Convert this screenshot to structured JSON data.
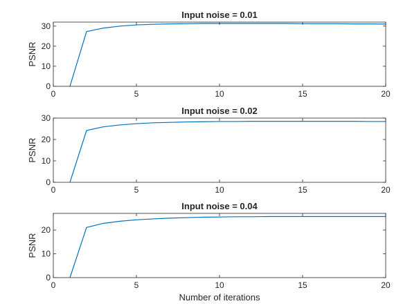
{
  "chart_data": [
    {
      "type": "line",
      "title": "Input noise = 0.01",
      "xlabel": "",
      "ylabel": "PSNR",
      "xlim": [
        0,
        20
      ],
      "ylim": [
        0,
        32
      ],
      "xticks": [
        0,
        5,
        10,
        15,
        20
      ],
      "yticks": [
        0,
        10,
        20,
        30
      ],
      "grid": false,
      "color": "#0072BD",
      "series": [
        {
          "x": [
            1,
            2,
            3,
            4,
            5,
            6,
            7,
            8,
            9,
            10,
            11,
            12,
            13,
            14,
            15,
            16,
            17,
            18,
            19,
            20
          ],
          "values": [
            0,
            27.3,
            29.0,
            30.0,
            30.6,
            30.9,
            31.1,
            31.2,
            31.3,
            31.3,
            31.3,
            31.3,
            31.3,
            31.3,
            31.2,
            31.2,
            31.2,
            31.1,
            31.1,
            31.0
          ]
        }
      ]
    },
    {
      "type": "line",
      "title": "Input noise = 0.02",
      "xlabel": "",
      "ylabel": "PSNR",
      "xlim": [
        0,
        20
      ],
      "ylim": [
        0,
        30
      ],
      "xticks": [
        0,
        5,
        10,
        15,
        20
      ],
      "yticks": [
        0,
        10,
        20,
        30
      ],
      "grid": false,
      "color": "#0072BD",
      "series": [
        {
          "x": [
            1,
            2,
            3,
            4,
            5,
            6,
            7,
            8,
            9,
            10,
            11,
            12,
            13,
            14,
            15,
            16,
            17,
            18,
            19,
            20
          ],
          "values": [
            0,
            24.2,
            25.9,
            26.8,
            27.4,
            27.8,
            28.0,
            28.2,
            28.3,
            28.4,
            28.4,
            28.5,
            28.5,
            28.5,
            28.5,
            28.5,
            28.5,
            28.5,
            28.4,
            28.4
          ]
        }
      ]
    },
    {
      "type": "line",
      "title": "Input noise = 0.04",
      "xlabel": "Number of iterations",
      "ylabel": "PSNR",
      "xlim": [
        0,
        20
      ],
      "ylim": [
        0,
        27
      ],
      "xticks": [
        0,
        5,
        10,
        15,
        20
      ],
      "yticks": [
        0,
        10,
        20
      ],
      "grid": false,
      "color": "#0072BD",
      "series": [
        {
          "x": [
            1,
            2,
            3,
            4,
            5,
            6,
            7,
            8,
            9,
            10,
            11,
            12,
            13,
            14,
            15,
            16,
            17,
            18,
            19,
            20
          ],
          "values": [
            0,
            21.1,
            22.8,
            23.7,
            24.3,
            24.7,
            25.0,
            25.2,
            25.4,
            25.5,
            25.6,
            25.6,
            25.7,
            25.7,
            25.7,
            25.7,
            25.7,
            25.7,
            25.7,
            25.7
          ]
        }
      ]
    }
  ]
}
